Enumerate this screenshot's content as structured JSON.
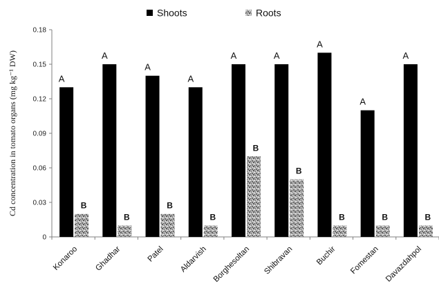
{
  "chart_data": {
    "type": "bar",
    "categories": [
      "Konaroo",
      "Ghadhar",
      "Patel",
      "Aldarvish",
      "Borghesoltan",
      "Shibravan",
      "Buchir",
      "Fomestan",
      "Davazdahpol"
    ],
    "series": [
      {
        "name": "Shoots",
        "values": [
          0.13,
          0.15,
          0.14,
          0.13,
          0.15,
          0.15,
          0.16,
          0.11,
          0.15
        ],
        "labels": [
          "A",
          "A",
          "A",
          "A",
          "A",
          "A",
          "A",
          "A",
          "A"
        ],
        "color": "#000000"
      },
      {
        "name": "Roots",
        "values": [
          0.02,
          0.01,
          0.02,
          0.01,
          0.07,
          0.05,
          0.01,
          0.01,
          0.01
        ],
        "labels": [
          "B",
          "B",
          "B",
          "B",
          "B",
          "B",
          "B",
          "B",
          "B"
        ],
        "color": "#9a9a9a",
        "pattern": "speckled-gray"
      }
    ],
    "ylabel": "Cd concentration in tomato organs (mg kg⁻¹ DW)",
    "ylim": [
      0,
      0.18
    ],
    "yticks": [
      "0",
      "0.03",
      "0.06",
      "0.09",
      "0.12",
      "0.15",
      "0.18"
    ],
    "grid": false,
    "legend": "top-center"
  }
}
